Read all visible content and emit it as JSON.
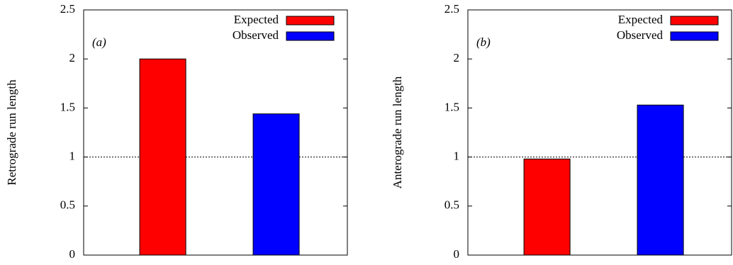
{
  "chart_data": [
    {
      "type": "bar",
      "annotation": "(a)",
      "y_label": "Retrograde run length",
      "categories": [
        null,
        null
      ],
      "series": [
        {
          "name": "Expected",
          "color": "#ff0000",
          "values": [
            2.0,
            null
          ]
        },
        {
          "name": "Observed",
          "color": "#0000ff",
          "values": [
            null,
            1.44
          ]
        }
      ],
      "ylim": [
        0,
        2.5
      ],
      "yticks": [
        0,
        0.5,
        1,
        1.5,
        2,
        2.5
      ],
      "reference_line": 1,
      "legend": "upper right"
    },
    {
      "type": "bar",
      "annotation": "(b)",
      "y_label": "Anterograde run length",
      "categories": [
        null,
        null
      ],
      "series": [
        {
          "name": "Expected",
          "color": "#ff0000",
          "values": [
            0.98,
            null
          ]
        },
        {
          "name": "Observed",
          "color": "#0000ff",
          "values": [
            null,
            1.53
          ]
        }
      ],
      "ylim": [
        0,
        2.5
      ],
      "yticks": [
        0,
        0.5,
        1,
        1.5,
        2,
        2.5
      ],
      "reference_line": 1,
      "legend": "upper right"
    }
  ]
}
